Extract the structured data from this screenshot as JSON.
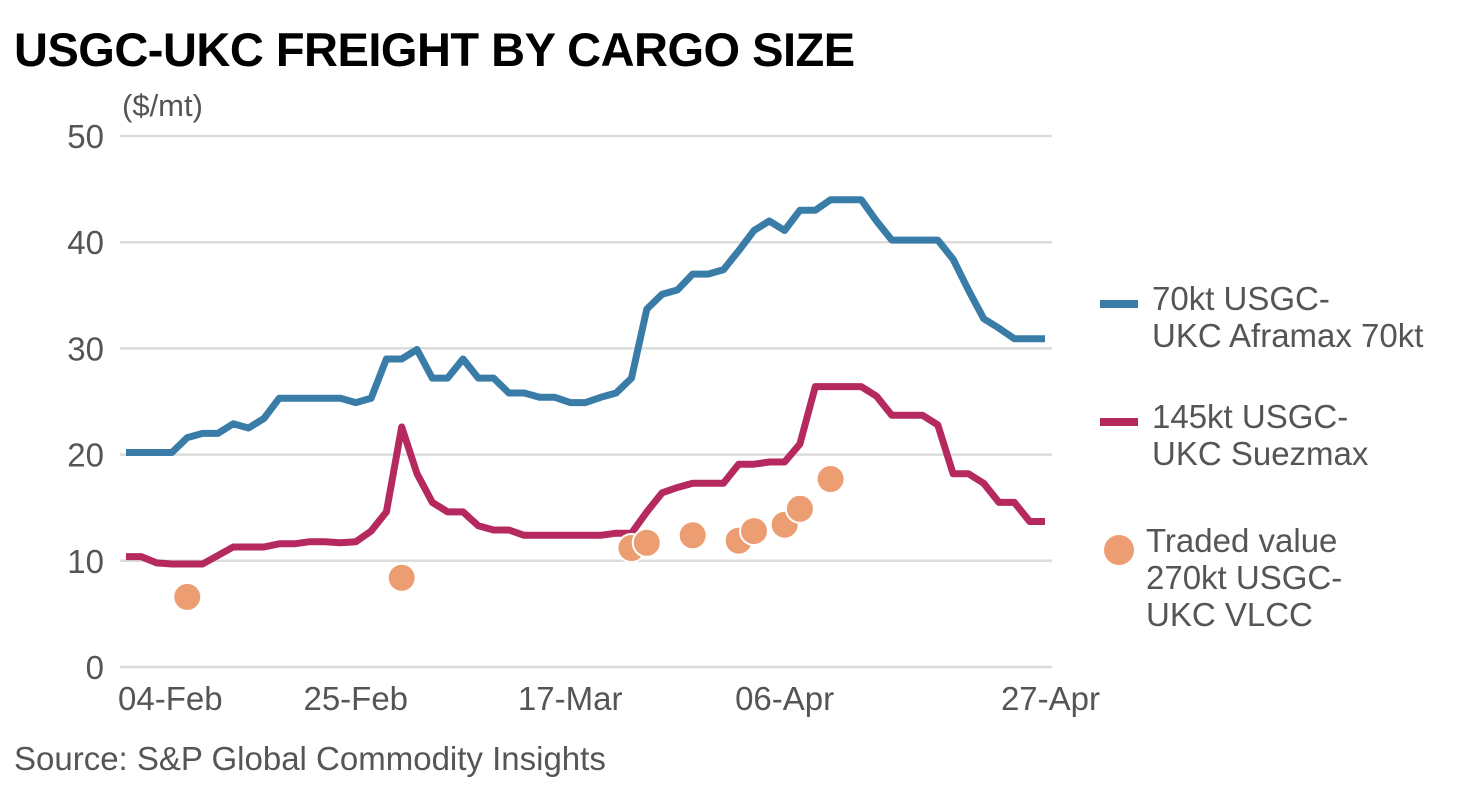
{
  "title": "USGC-UKC FREIGHT BY CARGO SIZE",
  "unit": "($/mt)",
  "source": "Source: S&P Global Commodity Insights",
  "colors": {
    "aframax": "#3a7ca8",
    "suezmax": "#b5295f",
    "vlcc": "#ec9e72",
    "grid": "#dcdcdc",
    "tick": "#555555"
  },
  "legend": {
    "aframax": "70kt USGC-\nUKC Aframax 70kt",
    "suezmax": "145kt USGC-\nUKC Suezmax",
    "vlcc": "Traded value\n270kt USGC-\nUKC VLCC"
  },
  "chart_data": {
    "type": "line",
    "title": "USGC-UKC FREIGHT BY CARGO SIZE",
    "ylabel": "($/mt)",
    "xlabel": "",
    "ylim": [
      0,
      50
    ],
    "yticks": [
      0,
      10,
      20,
      30,
      40,
      50
    ],
    "xlim": [
      0,
      60
    ],
    "xtick_labels": [
      {
        "x": 0,
        "label": "04-Feb"
      },
      {
        "x": 15,
        "label": "25-Feb"
      },
      {
        "x": 29,
        "label": "17-Mar"
      },
      {
        "x": 43,
        "label": "06-Apr"
      },
      {
        "x": 57,
        "label": "27-Apr"
      }
    ],
    "grid": true,
    "legend_position": "right",
    "series": [
      {
        "name": "70kt USGC-UKC Aframax 70kt",
        "type": "line",
        "x": [
          0,
          1,
          2,
          3,
          4,
          5,
          6,
          7,
          8,
          9,
          10,
          11,
          12,
          13,
          14,
          15,
          16,
          17,
          18,
          19,
          20,
          21,
          22,
          23,
          24,
          25,
          26,
          27,
          28,
          29,
          30,
          31,
          32,
          33,
          34,
          35,
          36,
          37,
          38,
          39,
          40,
          41,
          42,
          43,
          44,
          45,
          46,
          47,
          48,
          49,
          50,
          51,
          52,
          53,
          54,
          55,
          56,
          57,
          58,
          59,
          60
        ],
        "values": [
          20.2,
          20.2,
          20.2,
          20.2,
          21.6,
          22.0,
          22.0,
          22.9,
          22.5,
          23.4,
          25.3,
          25.3,
          25.3,
          25.3,
          25.3,
          24.9,
          25.3,
          29.0,
          29.0,
          29.9,
          27.2,
          27.2,
          29.0,
          27.2,
          27.2,
          25.8,
          25.8,
          25.4,
          25.4,
          24.9,
          24.9,
          25.4,
          25.8,
          27.2,
          33.7,
          35.1,
          35.5,
          37.0,
          37.0,
          37.4,
          39.2,
          41.1,
          42.0,
          41.1,
          43.0,
          43.0,
          44.0,
          44.0,
          44.0,
          42.0,
          40.2,
          40.2,
          40.2,
          40.2,
          38.4,
          35.5,
          32.8,
          31.9,
          30.9,
          30.9,
          30.9
        ]
      },
      {
        "name": "145kt USGC-UKC Suezmax",
        "type": "line",
        "x": [
          0,
          1,
          2,
          3,
          4,
          5,
          6,
          7,
          8,
          9,
          10,
          11,
          12,
          13,
          14,
          15,
          16,
          17,
          18,
          19,
          20,
          21,
          22,
          23,
          24,
          25,
          26,
          27,
          28,
          29,
          30,
          31,
          32,
          33,
          34,
          35,
          36,
          37,
          38,
          39,
          40,
          41,
          42,
          43,
          44,
          45,
          46,
          47,
          48,
          49,
          50,
          51,
          52,
          53,
          54,
          55,
          56,
          57,
          58,
          59,
          60
        ],
        "values": [
          10.4,
          10.4,
          9.8,
          9.7,
          9.7,
          9.7,
          10.5,
          11.3,
          11.3,
          11.3,
          11.6,
          11.6,
          11.8,
          11.8,
          11.7,
          11.8,
          12.8,
          14.6,
          22.6,
          18.2,
          15.5,
          14.6,
          14.6,
          13.3,
          12.9,
          12.9,
          12.4,
          12.4,
          12.4,
          12.4,
          12.4,
          12.4,
          12.6,
          12.6,
          14.6,
          16.4,
          16.9,
          17.3,
          17.3,
          17.3,
          19.1,
          19.1,
          19.3,
          19.3,
          21.0,
          26.4,
          26.4,
          26.4,
          26.4,
          25.5,
          23.7,
          23.7,
          23.7,
          22.8,
          18.2,
          18.2,
          17.3,
          15.5,
          15.5,
          13.7,
          13.7
        ]
      },
      {
        "name": "Traded value 270kt USGC-UKC VLCC",
        "type": "scatter",
        "x": [
          4,
          18,
          33,
          34,
          37,
          40,
          41,
          43,
          44,
          46
        ],
        "values": [
          6.6,
          8.4,
          11.2,
          11.7,
          12.4,
          11.9,
          12.8,
          13.4,
          14.9,
          17.7
        ]
      }
    ]
  }
}
